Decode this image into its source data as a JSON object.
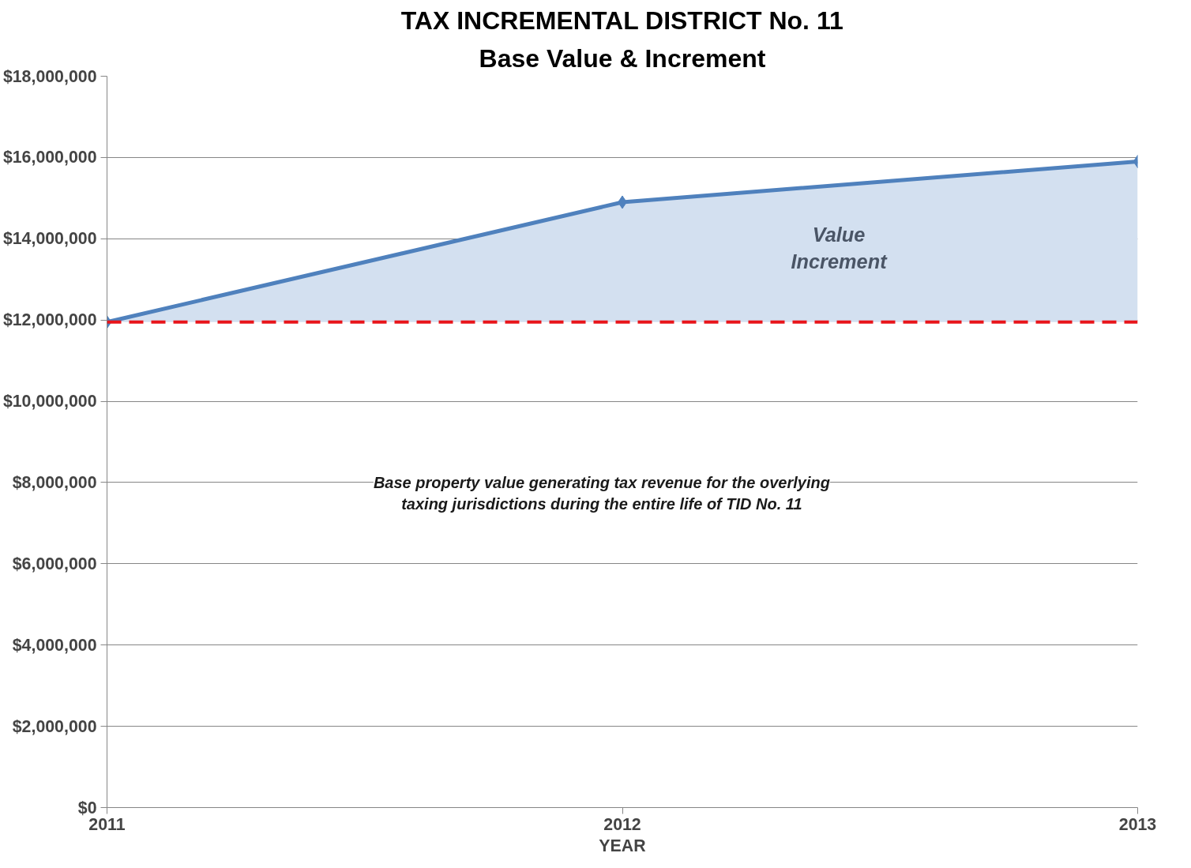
{
  "chart_data": {
    "type": "line",
    "title": "TAX INCREMENTAL DISTRICT No. 11",
    "subtitle": "Base Value & Increment",
    "xlabel": "YEAR",
    "x": [
      2011,
      2012,
      2013
    ],
    "series": [
      {
        "color": "#4f81bd",
        "values": [
          11950000,
          14900000,
          15900000
        ],
        "lower": [
          11950000,
          11950000,
          11950000
        ],
        "upper": [
          11950000,
          14900000,
          15900000
        ]
      }
    ],
    "marker": "diamond",
    "line_style": "solid",
    "grid": "y",
    "xlim": [
      2011,
      2013
    ],
    "xticks": [
      2011,
      2012,
      2013
    ],
    "ylim": [
      0,
      18000000
    ],
    "yticks": [
      {
        "value": 0,
        "label": "$0"
      },
      {
        "value": 2000000,
        "label": "$2,000,000"
      },
      {
        "value": 4000000,
        "label": "$4,000,000"
      },
      {
        "value": 6000000,
        "label": "$6,000,000"
      },
      {
        "value": 8000000,
        "label": "$8,000,000"
      },
      {
        "value": 10000000,
        "label": "$10,000,000"
      },
      {
        "value": 12000000,
        "label": "$12,000,000"
      },
      {
        "value": 14000000,
        "label": "$14,000,000"
      },
      {
        "value": 16000000,
        "label": "$16,000,000"
      },
      {
        "value": 18000000,
        "label": "$18,000,000"
      }
    ],
    "ref_lines": [
      {
        "axis": "y",
        "value": 11950000,
        "color": "#e8151b",
        "line_style": "dashed"
      }
    ],
    "annotations": [
      "Value Increment",
      "Base property value generating tax revenue for the overlying taxing jurisdictions during the entire life of TID No. 11"
    ]
  }
}
